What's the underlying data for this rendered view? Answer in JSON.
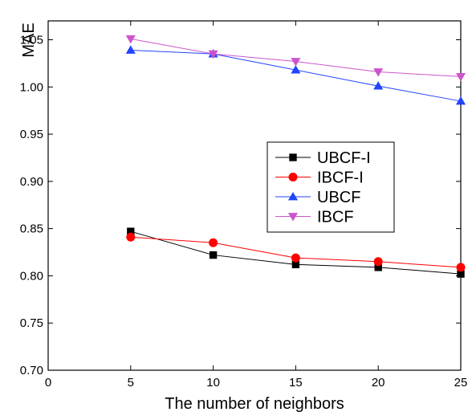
{
  "chart_data": {
    "type": "line",
    "xlabel": "The number of neighbors",
    "ylabel": "MAE",
    "xlim": [
      0,
      25
    ],
    "ylim": [
      0.7,
      1.07
    ],
    "xticks": [
      "0",
      "5",
      "10",
      "15",
      "20",
      "25"
    ],
    "yticks": [
      "0.70",
      "0.75",
      "0.80",
      "0.85",
      "0.90",
      "0.95",
      "1.00",
      "1.05"
    ],
    "x": [
      5,
      10,
      15,
      20,
      25
    ],
    "grid": false,
    "legend_position": "center-right",
    "series": [
      {
        "name": "UBCF-I",
        "values": [
          0.847,
          0.822,
          0.812,
          0.809,
          0.802
        ],
        "color": "#000000",
        "marker": "square"
      },
      {
        "name": "IBCF-I",
        "values": [
          0.841,
          0.835,
          0.819,
          0.815,
          0.809
        ],
        "color": "#ff0000",
        "marker": "circle"
      },
      {
        "name": "UBCF",
        "values": [
          1.039,
          1.035,
          1.018,
          1.001,
          0.985
        ],
        "color": "#2244ff",
        "marker": "triangle-up"
      },
      {
        "name": "IBCF",
        "values": [
          1.051,
          1.035,
          1.027,
          1.016,
          1.011
        ],
        "color": "#cc55cc",
        "marker": "triangle-down"
      }
    ]
  }
}
